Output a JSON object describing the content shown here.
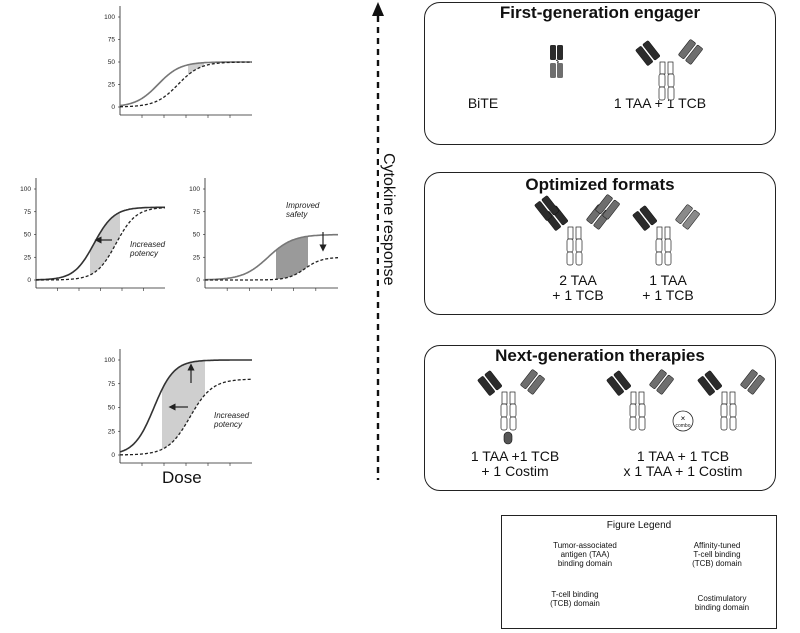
{
  "axis": {
    "ticks": [
      "0",
      "25",
      "50",
      "75",
      "100"
    ],
    "xlabel": "Dose",
    "ylabel": "Cytokine response"
  },
  "annotations": {
    "increased_potency_mid": "Increased\npotency",
    "improved_safety": "Improved\nsafety",
    "increased_potency_bottom": "Increased\npotency"
  },
  "panels": {
    "first": {
      "title": "First-generation engager",
      "formats": [
        "BiTE",
        "1 TAA + 1 TCB"
      ]
    },
    "optimized": {
      "title": "Optimized formats",
      "formats": [
        "2 TAA\n+ 1 TCB",
        "1 TAA\n+ 1 TCB"
      ]
    },
    "next": {
      "title": "Next-generation therapies",
      "formats": [
        "1 TAA +1 TCB\n+ 1 Costim",
        "1 TAA + 1 TCB\nx 1 TAA + 1 Costim"
      ],
      "combo_label": "combo"
    }
  },
  "legend": {
    "title": "Figure Legend",
    "items": [
      "Tumor-associated\nantigen (TAA)\nbinding domain",
      "Affinity-tuned\nT-cell binding\n(TCB) domain",
      "T-cell binding\n(TCB) domain",
      "Costimulatory\nbinding domain"
    ]
  },
  "colors": {
    "taa": "#2b2b2b",
    "tcb": "#6e6e6e",
    "tuned": "#8a8a8a",
    "shade_light": "#cfcfcf",
    "shade_dark": "#9a9a9a"
  },
  "chart_data": [
    {
      "type": "line",
      "name": "top",
      "ylim": [
        0,
        100
      ],
      "series": [
        {
          "style": "solid",
          "plateau": 50
        },
        {
          "style": "dashed",
          "plateau": 50
        }
      ]
    },
    {
      "type": "line",
      "name": "mid-left",
      "ylim": [
        0,
        100
      ],
      "series": [
        {
          "style": "solid",
          "plateau": 80
        },
        {
          "style": "dashed",
          "plateau": 80
        }
      ]
    },
    {
      "type": "line",
      "name": "mid-right",
      "ylim": [
        0,
        100
      ],
      "series": [
        {
          "style": "solid",
          "plateau": 50
        },
        {
          "style": "dashed",
          "plateau": 25
        }
      ]
    },
    {
      "type": "line",
      "name": "bottom",
      "ylim": [
        0,
        100
      ],
      "series": [
        {
          "style": "solid",
          "plateau": 100
        },
        {
          "style": "dashed",
          "plateau": 80
        }
      ]
    }
  ]
}
